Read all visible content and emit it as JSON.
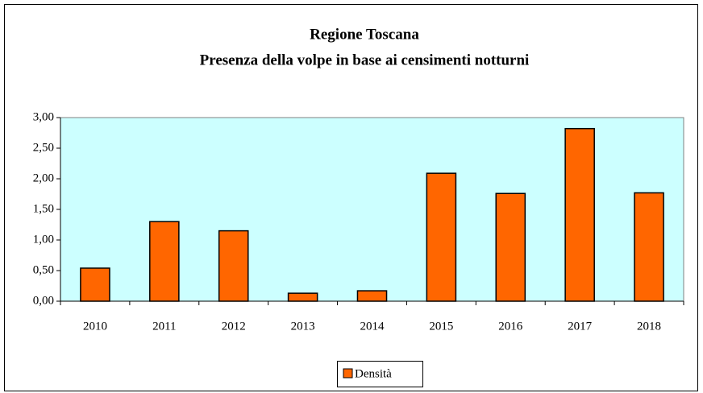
{
  "chart_data": {
    "type": "bar",
    "title": "Regione Toscana",
    "subtitle": "Presenza della volpe in base ai censimenti notturni",
    "categories": [
      "2010",
      "2011",
      "2012",
      "2013",
      "2014",
      "2015",
      "2016",
      "2017",
      "2018"
    ],
    "series": [
      {
        "name": "Densità",
        "color": "#ff6600",
        "values": [
          0.54,
          1.3,
          1.15,
          0.13,
          0.17,
          2.09,
          1.76,
          2.82,
          1.77
        ]
      }
    ],
    "ylim": [
      0,
      3
    ],
    "yticks": [
      {
        "value": 0,
        "label": "0,00"
      },
      {
        "value": 0.5,
        "label": "0,50"
      },
      {
        "value": 1,
        "label": "1,00"
      },
      {
        "value": 1.5,
        "label": "1,50"
      },
      {
        "value": 2,
        "label": "2,00"
      },
      {
        "value": 2.5,
        "label": "2,50"
      },
      {
        "value": 3,
        "label": "3,00"
      }
    ],
    "grid": false,
    "legend": "bottom"
  }
}
